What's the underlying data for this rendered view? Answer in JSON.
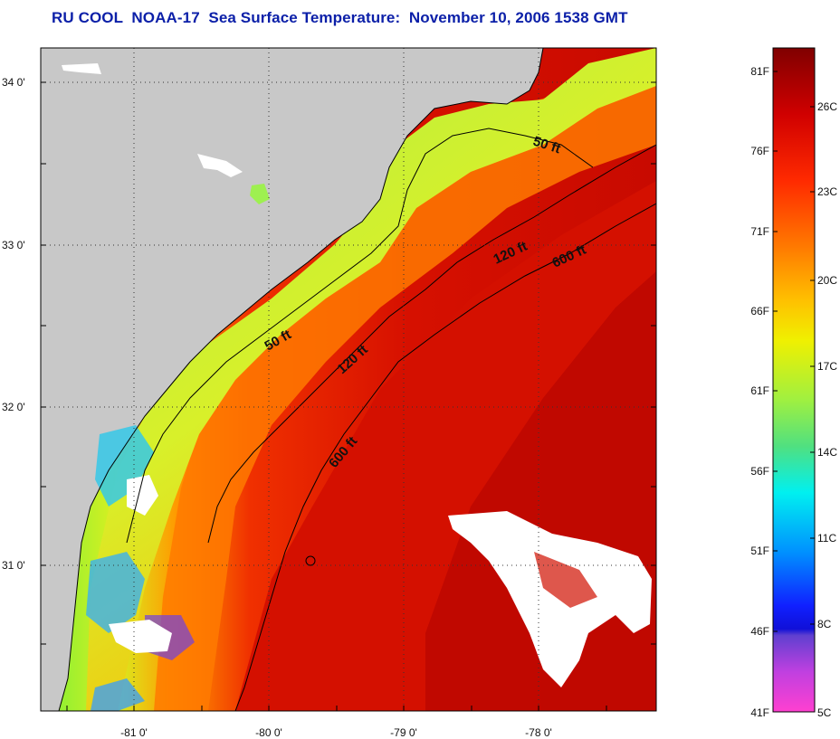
{
  "title": "RU COOL  NOAA-17  Sea Surface Temperature:  November 10, 2006 1538 GMT",
  "latitude_labels": [
    "34 0'",
    "33 0'",
    "32 0'",
    "31 0'"
  ],
  "longitude_labels": [
    "-81 0'",
    "-80 0'",
    "-79 0'",
    "-78 0'"
  ],
  "depth_contours": [
    {
      "label": "50 ft",
      "depth_ft": 50
    },
    {
      "label": "50 ft",
      "depth_ft": 50
    },
    {
      "label": "120 ft",
      "depth_ft": 120
    },
    {
      "label": "120 ft",
      "depth_ft": 120
    },
    {
      "label": "600 ft",
      "depth_ft": 600
    },
    {
      "label": "600 ft",
      "depth_ft": 600
    }
  ],
  "colorbar": {
    "fahrenheit_labels": [
      "81F",
      "76F",
      "71F",
      "66F",
      "61F",
      "56F",
      "51F",
      "46F",
      "41F"
    ],
    "celsius_labels": [
      "26C",
      "23C",
      "20C",
      "17C",
      "14C",
      "11C",
      "8C",
      "5C"
    ]
  },
  "colors": {
    "title": "#0b1fa8",
    "land": "#c8c8c8",
    "warm_water": "#e01000",
    "cool_water": "#96f032",
    "cloud": "#ffffff"
  }
}
